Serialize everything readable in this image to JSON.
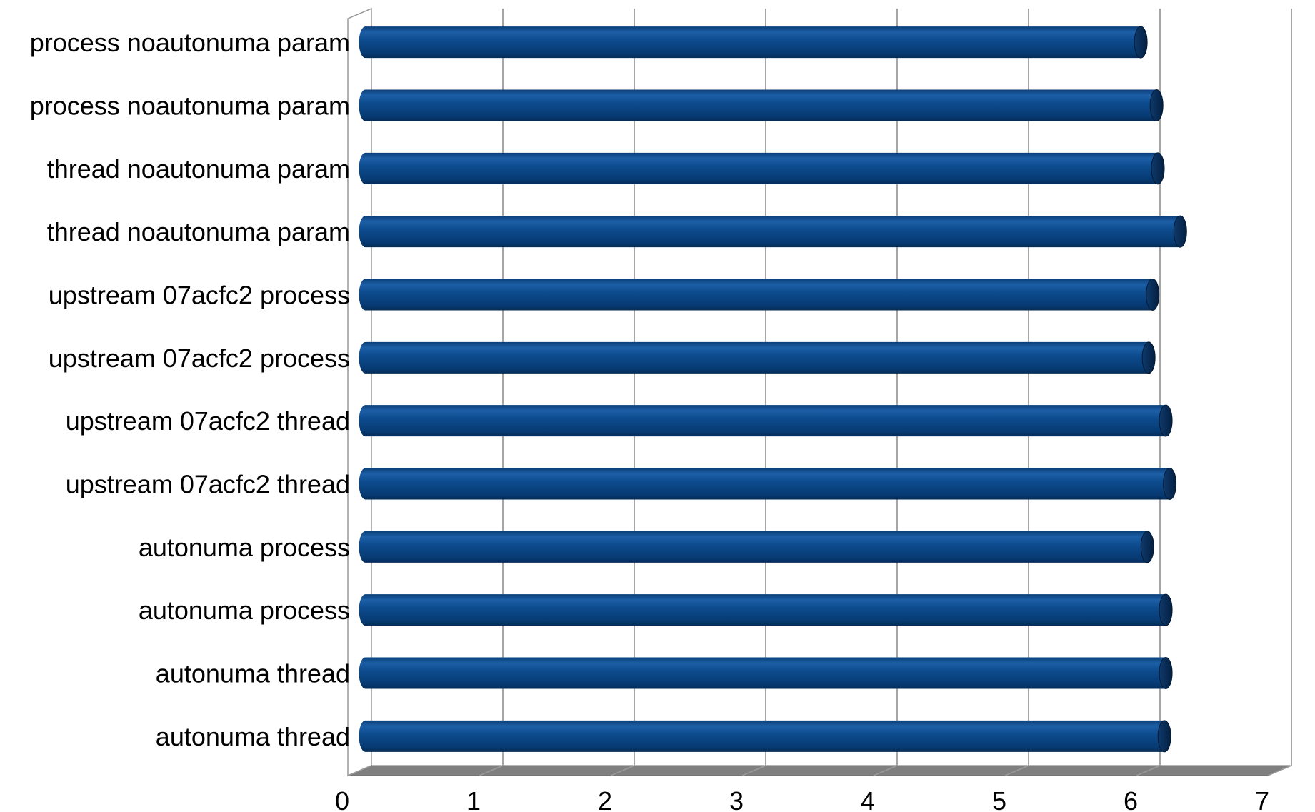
{
  "chart_data": {
    "type": "bar",
    "orientation": "horizontal",
    "style": "3d-cylinder",
    "categories": [
      "process noautonuma param",
      "process noautonuma param",
      "thread noautonuma param",
      "thread noautonuma param",
      "upstream 07acfc2 process",
      "upstream 07acfc2 process",
      "upstream 07acfc2 thread",
      "upstream 07acfc2 thread",
      "autonuma process",
      "autonuma process",
      "autonuma thread",
      "autonuma thread"
    ],
    "values": [
      5.9,
      6.02,
      6.03,
      6.2,
      5.99,
      5.96,
      6.09,
      6.12,
      5.95,
      6.09,
      6.09,
      6.08
    ],
    "xlim": [
      0,
      7
    ],
    "xticks": [
      "0",
      "1",
      "2",
      "3",
      "4",
      "5",
      "6",
      "7"
    ],
    "title": "",
    "xlabel": "",
    "ylabel": "",
    "grid": "vertical",
    "legend": "none",
    "colors": {
      "bar": "#0a4a8c",
      "bar_highlight": "#2a6cb5",
      "bar_shadow": "#062f5c",
      "bar_cap": "#0b2f5a",
      "grid": "#a6a6a6",
      "floor": "#7f7f7f",
      "wall": "#ffffff",
      "wall_edge": "#999999"
    }
  }
}
